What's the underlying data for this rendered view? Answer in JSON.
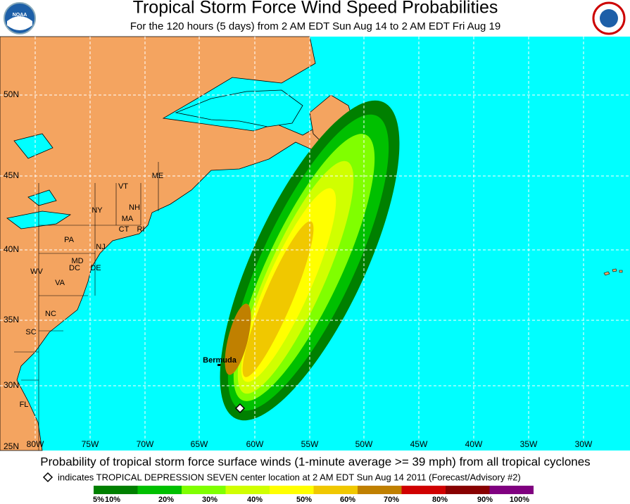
{
  "header": {
    "title": "Tropical Storm Force Wind Speed Probabilities",
    "subtitle": "For the 120 hours (5 days) from 2 AM EDT Sun Aug 14 to 2 AM EDT Fri Aug 19",
    "logo": "NOAA"
  },
  "map": {
    "lat_labels": [
      "50N",
      "45N",
      "40N",
      "35N",
      "30N",
      "25N"
    ],
    "lon_labels": [
      "80W",
      "75W",
      "70W",
      "65W",
      "60W",
      "55W",
      "50W",
      "45W",
      "40W",
      "35W",
      "30W"
    ],
    "state_labels": [
      "ME",
      "VT",
      "NH",
      "NY",
      "MA",
      "CT",
      "RI",
      "PA",
      "NJ",
      "MD",
      "DE",
      "DC",
      "WV",
      "VA",
      "NC",
      "SC",
      "FL"
    ],
    "place_label": "Bermuda"
  },
  "footer": {
    "caption": "Probability of tropical storm force surface winds (1-minute average >= 39 mph) from all tropical cyclones",
    "note": "indicates TROPICAL DEPRESSION SEVEN center location at 2 AM EDT Sun Aug 14 2011 (Forecast/Advisory #2)"
  },
  "legend": {
    "labels": [
      "5%",
      "10%",
      "20%",
      "30%",
      "40%",
      "50%",
      "60%",
      "70%",
      "80%",
      "90%",
      "100%"
    ],
    "colors": [
      "#008000",
      "#00c000",
      "#80ff00",
      "#d0ff00",
      "#ffff00",
      "#f0c800",
      "#c08000",
      "#d00000",
      "#880000",
      "#800080"
    ]
  }
}
